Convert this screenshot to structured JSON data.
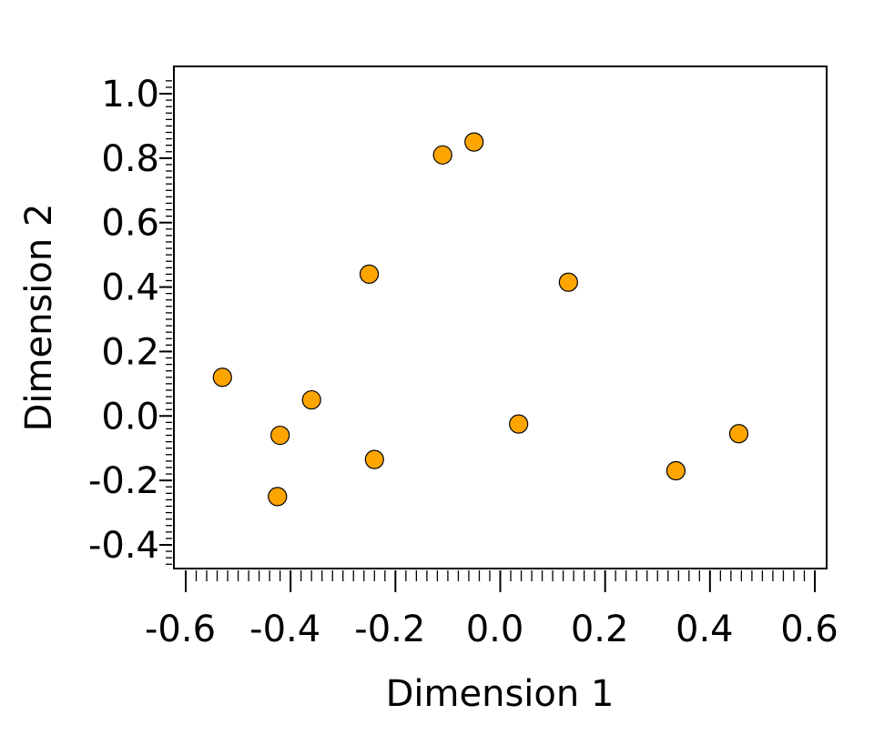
{
  "chart_data": {
    "type": "scatter",
    "title": "",
    "xlabel": "Dimension 1",
    "ylabel": "Dimension 2",
    "xlim": [
      -0.62,
      0.62
    ],
    "ylim": [
      -0.48,
      1.09
    ],
    "xticks": [
      -0.6,
      -0.4,
      -0.2,
      0.0,
      0.2,
      0.4,
      0.6
    ],
    "yticks": [
      -0.4,
      -0.2,
      0.0,
      0.2,
      0.4,
      0.6,
      0.8,
      1.0
    ],
    "xtick_labels": [
      "-0.6",
      "-0.4",
      "-0.2",
      "0.0",
      "0.2",
      "0.4",
      "0.6"
    ],
    "ytick_labels": [
      "-0.4",
      "-0.2",
      "0.0",
      "0.2",
      "0.4",
      "0.6",
      "0.8",
      "1.0"
    ],
    "grid": false,
    "marker_color": "#FFA500",
    "marker_edge_color": "#000000",
    "series": [
      {
        "points": [
          {
            "x": -0.53,
            "y": 0.12
          },
          {
            "x": -0.42,
            "y": -0.06
          },
          {
            "x": -0.425,
            "y": -0.25
          },
          {
            "x": -0.36,
            "y": 0.05
          },
          {
            "x": -0.25,
            "y": 0.44
          },
          {
            "x": -0.24,
            "y": -0.135
          },
          {
            "x": -0.11,
            "y": 0.81
          },
          {
            "x": -0.05,
            "y": 0.85
          },
          {
            "x": 0.035,
            "y": -0.025
          },
          {
            "x": 0.13,
            "y": 0.415
          },
          {
            "x": 0.335,
            "y": -0.17
          },
          {
            "x": 0.455,
            "y": -0.055
          }
        ]
      }
    ]
  }
}
